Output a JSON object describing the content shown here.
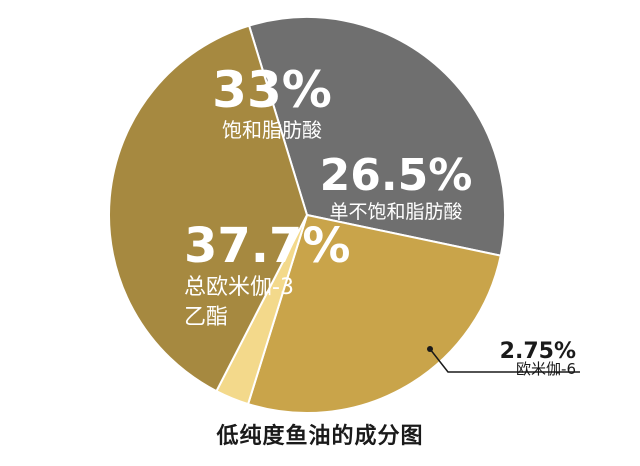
{
  "chart_data": {
    "type": "pie",
    "title": "低纯度鱼油的成分图",
    "slices": [
      {
        "percent_label": "33%",
        "value": 33,
        "label_lines": [
          "饱和脂肪酸"
        ],
        "color": "#6f6f6f"
      },
      {
        "percent_label": "26.5%",
        "value": 26.5,
        "label_lines": [
          "单不饱和脂肪酸"
        ],
        "color": "#c9a44a"
      },
      {
        "percent_label": "2.75%",
        "value": 2.75,
        "label_lines": [
          "欧米伽-6"
        ],
        "color": "#f3d98b"
      },
      {
        "percent_label": "37.7%",
        "value": 37.7,
        "label_lines": [
          "总欧米伽-3",
          "乙酯"
        ],
        "color": "#a68940"
      }
    ]
  }
}
